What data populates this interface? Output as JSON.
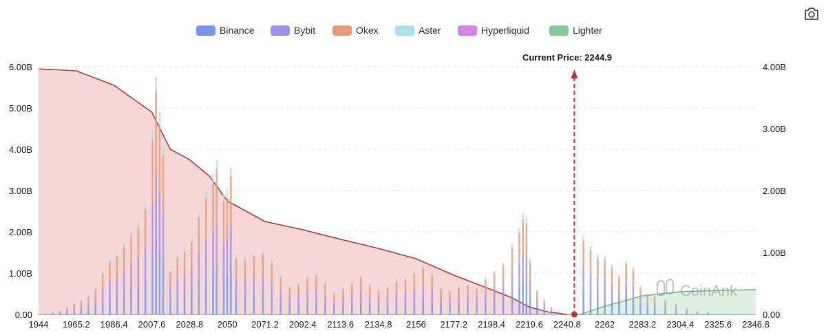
{
  "toolbar": {
    "screenshot_icon": "camera-icon"
  },
  "legend": {
    "items": [
      {
        "label": "Binance",
        "color": "#6f96f4"
      },
      {
        "label": "Bybit",
        "color": "#9d92f3"
      },
      {
        "label": "Okex",
        "color": "#e89a71"
      },
      {
        "label": "Aster",
        "color": "#a8e2f0"
      },
      {
        "label": "Hyperliquid",
        "color": "#d77ff0"
      },
      {
        "label": "Lighter",
        "color": "#82cb98"
      }
    ]
  },
  "chart_data": {
    "type": "bar",
    "current_price_label": "Current Price:",
    "current_price_value": "2244.9",
    "current_price": 2244.9,
    "watermark": "CoinAnk",
    "x_ticks": [
      "1944",
      "1965.2",
      "1986.4",
      "2007.6",
      "2028.8",
      "2050",
      "2071.2",
      "2092.4",
      "2113.6",
      "2134.8",
      "2156",
      "2177.2",
      "2198.4",
      "2219.6",
      "2240.8",
      "2262",
      "2283.2",
      "2304.4",
      "2325.6",
      "2346.8"
    ],
    "x_range": [
      1944,
      2346.8
    ],
    "y_left": {
      "ticks": [
        "0.00",
        "1.00B",
        "2.00B",
        "3.00B",
        "4.00B",
        "5.00B",
        "6.00B"
      ],
      "range": [
        0,
        6.0
      ]
    },
    "y_right": {
      "ticks": [
        "0.00",
        "1.00B",
        "2.00B",
        "3.00B",
        "4.00B"
      ],
      "range": [
        0,
        4.0
      ]
    },
    "grid": true,
    "legend_position": "top-center",
    "bars": [
      {
        "price": 1944,
        "total": 0.01
      },
      {
        "price": 1948,
        "total": 0.02
      },
      {
        "price": 1952,
        "total": 0.05
      },
      {
        "price": 1956,
        "total": 0.1
      },
      {
        "price": 1960,
        "total": 0.18
      },
      {
        "price": 1964,
        "total": 0.28
      },
      {
        "price": 1968,
        "total": 0.35
      },
      {
        "price": 1972,
        "total": 0.45
      },
      {
        "price": 1976,
        "total": 0.65
      },
      {
        "price": 1980,
        "total": 1.05
      },
      {
        "price": 1984,
        "total": 1.35
      },
      {
        "price": 1988,
        "total": 1.5
      },
      {
        "price": 1992,
        "total": 1.75
      },
      {
        "price": 1996,
        "total": 2.0
      },
      {
        "price": 2000,
        "total": 2.25
      },
      {
        "price": 2004,
        "total": 2.7
      },
      {
        "price": 2008,
        "total": 4.5
      },
      {
        "price": 2010,
        "total": 5.75
      },
      {
        "price": 2012,
        "total": 4.9
      },
      {
        "price": 2014,
        "total": 4.1
      },
      {
        "price": 2018,
        "total": 1.1
      },
      {
        "price": 2022,
        "total": 1.45
      },
      {
        "price": 2026,
        "total": 1.6
      },
      {
        "price": 2030,
        "total": 1.85
      },
      {
        "price": 2034,
        "total": 2.5
      },
      {
        "price": 2038,
        "total": 3.0
      },
      {
        "price": 2042,
        "total": 3.4
      },
      {
        "price": 2044,
        "total": 3.75
      },
      {
        "price": 2048,
        "total": 2.9
      },
      {
        "price": 2050,
        "total": 3.0
      },
      {
        "price": 2052,
        "total": 3.55
      },
      {
        "price": 2055,
        "total": 1.45
      },
      {
        "price": 2060,
        "total": 1.4
      },
      {
        "price": 2065,
        "total": 1.5
      },
      {
        "price": 2070,
        "total": 1.55
      },
      {
        "price": 2075,
        "total": 1.35
      },
      {
        "price": 2080,
        "total": 0.95
      },
      {
        "price": 2085,
        "total": 0.7
      },
      {
        "price": 2090,
        "total": 0.75
      },
      {
        "price": 2095,
        "total": 0.95
      },
      {
        "price": 2100,
        "total": 1.0
      },
      {
        "price": 2105,
        "total": 0.8
      },
      {
        "price": 2110,
        "total": 0.55
      },
      {
        "price": 2115,
        "total": 0.65
      },
      {
        "price": 2120,
        "total": 0.8
      },
      {
        "price": 2125,
        "total": 0.95
      },
      {
        "price": 2130,
        "total": 0.75
      },
      {
        "price": 2135,
        "total": 0.6
      },
      {
        "price": 2140,
        "total": 0.7
      },
      {
        "price": 2145,
        "total": 0.85
      },
      {
        "price": 2150,
        "total": 0.9
      },
      {
        "price": 2155,
        "total": 1.05
      },
      {
        "price": 2160,
        "total": 1.2
      },
      {
        "price": 2165,
        "total": 1.0
      },
      {
        "price": 2170,
        "total": 0.65
      },
      {
        "price": 2175,
        "total": 0.6
      },
      {
        "price": 2180,
        "total": 0.7
      },
      {
        "price": 2185,
        "total": 0.75
      },
      {
        "price": 2190,
        "total": 0.65
      },
      {
        "price": 2195,
        "total": 0.9
      },
      {
        "price": 2200,
        "total": 1.05
      },
      {
        "price": 2205,
        "total": 1.25
      },
      {
        "price": 2210,
        "total": 1.7
      },
      {
        "price": 2214,
        "total": 2.1
      },
      {
        "price": 2216,
        "total": 2.45
      },
      {
        "price": 2218,
        "total": 2.35
      },
      {
        "price": 2220,
        "total": 1.35
      },
      {
        "price": 2224,
        "total": 0.6
      },
      {
        "price": 2228,
        "total": 0.35
      },
      {
        "price": 2232,
        "total": 0.18
      },
      {
        "price": 2236,
        "total": 0.08
      },
      {
        "price": 2250,
        "total": 1.9
      },
      {
        "price": 2254,
        "total": 1.65
      },
      {
        "price": 2258,
        "total": 1.45
      },
      {
        "price": 2262,
        "total": 1.4
      },
      {
        "price": 2266,
        "total": 1.2
      },
      {
        "price": 2270,
        "total": 0.95
      },
      {
        "price": 2274,
        "total": 1.3
      },
      {
        "price": 2278,
        "total": 1.15
      },
      {
        "price": 2282,
        "total": 0.7
      },
      {
        "price": 2286,
        "total": 0.5
      },
      {
        "price": 2290,
        "total": 0.45
      },
      {
        "price": 2296,
        "total": 0.35
      },
      {
        "price": 2302,
        "total": 0.25
      },
      {
        "price": 2308,
        "total": 0.15
      },
      {
        "price": 2314,
        "total": 0.08
      },
      {
        "price": 2320,
        "total": 0.05
      }
    ],
    "cumulative_long": [
      {
        "x": 1944,
        "y": 5.95
      },
      {
        "x": 1965.2,
        "y": 5.9
      },
      {
        "x": 1986.4,
        "y": 5.55
      },
      {
        "x": 2007.6,
        "y": 4.9
      },
      {
        "x": 2018,
        "y": 4.0
      },
      {
        "x": 2028.8,
        "y": 3.75
      },
      {
        "x": 2040,
        "y": 3.35
      },
      {
        "x": 2050,
        "y": 2.75
      },
      {
        "x": 2071.2,
        "y": 2.25
      },
      {
        "x": 2092.4,
        "y": 2.05
      },
      {
        "x": 2113.6,
        "y": 1.82
      },
      {
        "x": 2134.8,
        "y": 1.6
      },
      {
        "x": 2156,
        "y": 1.35
      },
      {
        "x": 2177.2,
        "y": 0.95
      },
      {
        "x": 2198.4,
        "y": 0.6
      },
      {
        "x": 2210,
        "y": 0.4
      },
      {
        "x": 2219.6,
        "y": 0.18
      },
      {
        "x": 2230,
        "y": 0.06
      },
      {
        "x": 2240.8,
        "y": 0.0
      }
    ],
    "cumulative_short": [
      {
        "x": 2248,
        "y": 0.0
      },
      {
        "x": 2262,
        "y": 0.2
      },
      {
        "x": 2283.2,
        "y": 0.45
      },
      {
        "x": 2304.4,
        "y": 0.55
      },
      {
        "x": 2325.6,
        "y": 0.58
      },
      {
        "x": 2346.8,
        "y": 0.6
      }
    ]
  }
}
